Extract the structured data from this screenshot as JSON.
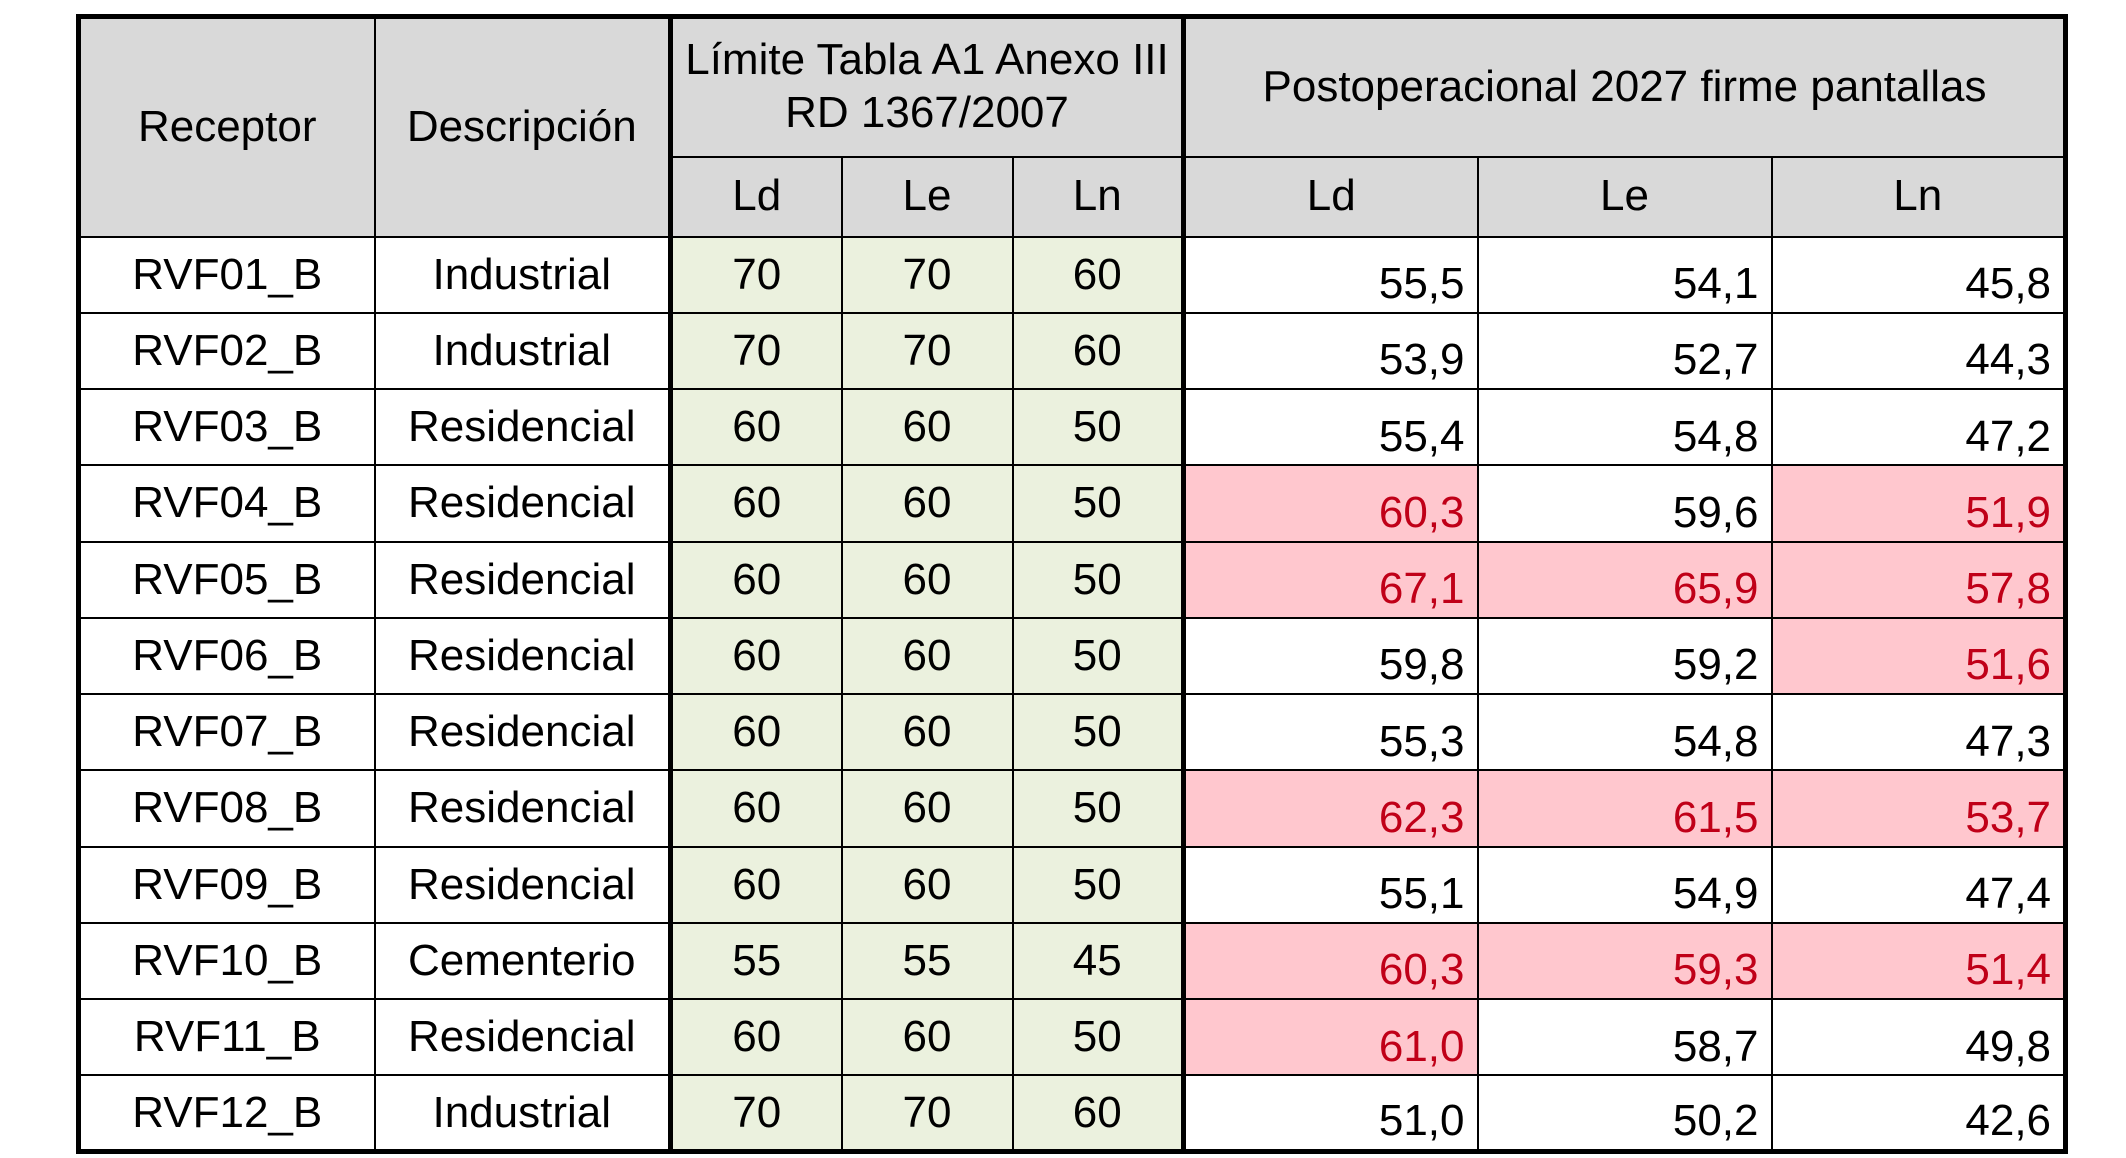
{
  "table": {
    "headers": {
      "receptor": "Receptor",
      "descripcion": "Descripción",
      "limite_group": "Límite Tabla A1 Anexo III RD 1367/2007",
      "post_group": "Postoperacional 2027 firme pantallas",
      "ld": "Ld",
      "le": "Le",
      "ln": "Ln"
    },
    "rows": [
      {
        "receptor": "RVF01_B",
        "descripcion": "Industrial",
        "lim_ld": "70",
        "lim_le": "70",
        "lim_ln": "60",
        "ld": "55,5",
        "le": "54,1",
        "ln": "45,8",
        "ld_exceed": false,
        "le_exceed": false,
        "ln_exceed": false
      },
      {
        "receptor": "RVF02_B",
        "descripcion": "Industrial",
        "lim_ld": "70",
        "lim_le": "70",
        "lim_ln": "60",
        "ld": "53,9",
        "le": "52,7",
        "ln": "44,3",
        "ld_exceed": false,
        "le_exceed": false,
        "ln_exceed": false
      },
      {
        "receptor": "RVF03_B",
        "descripcion": "Residencial",
        "lim_ld": "60",
        "lim_le": "60",
        "lim_ln": "50",
        "ld": "55,4",
        "le": "54,8",
        "ln": "47,2",
        "ld_exceed": false,
        "le_exceed": false,
        "ln_exceed": false
      },
      {
        "receptor": "RVF04_B",
        "descripcion": "Residencial",
        "lim_ld": "60",
        "lim_le": "60",
        "lim_ln": "50",
        "ld": "60,3",
        "le": "59,6",
        "ln": "51,9",
        "ld_exceed": true,
        "le_exceed": false,
        "ln_exceed": true
      },
      {
        "receptor": "RVF05_B",
        "descripcion": "Residencial",
        "lim_ld": "60",
        "lim_le": "60",
        "lim_ln": "50",
        "ld": "67,1",
        "le": "65,9",
        "ln": "57,8",
        "ld_exceed": true,
        "le_exceed": true,
        "ln_exceed": true
      },
      {
        "receptor": "RVF06_B",
        "descripcion": "Residencial",
        "lim_ld": "60",
        "lim_le": "60",
        "lim_ln": "50",
        "ld": "59,8",
        "le": "59,2",
        "ln": "51,6",
        "ld_exceed": false,
        "le_exceed": false,
        "ln_exceed": true
      },
      {
        "receptor": "RVF07_B",
        "descripcion": "Residencial",
        "lim_ld": "60",
        "lim_le": "60",
        "lim_ln": "50",
        "ld": "55,3",
        "le": "54,8",
        "ln": "47,3",
        "ld_exceed": false,
        "le_exceed": false,
        "ln_exceed": false
      },
      {
        "receptor": "RVF08_B",
        "descripcion": "Residencial",
        "lim_ld": "60",
        "lim_le": "60",
        "lim_ln": "50",
        "ld": "62,3",
        "le": "61,5",
        "ln": "53,7",
        "ld_exceed": true,
        "le_exceed": true,
        "ln_exceed": true
      },
      {
        "receptor": "RVF09_B",
        "descripcion": "Residencial",
        "lim_ld": "60",
        "lim_le": "60",
        "lim_ln": "50",
        "ld": "55,1",
        "le": "54,9",
        "ln": "47,4",
        "ld_exceed": false,
        "le_exceed": false,
        "ln_exceed": false
      },
      {
        "receptor": "RVF10_B",
        "descripcion": "Cementerio",
        "lim_ld": "55",
        "lim_le": "55",
        "lim_ln": "45",
        "ld": "60,3",
        "le": "59,3",
        "ln": "51,4",
        "ld_exceed": true,
        "le_exceed": true,
        "ln_exceed": true
      },
      {
        "receptor": "RVF11_B",
        "descripcion": "Residencial",
        "lim_ld": "60",
        "lim_le": "60",
        "lim_ln": "50",
        "ld": "61,0",
        "le": "58,7",
        "ln": "49,8",
        "ld_exceed": true,
        "le_exceed": false,
        "ln_exceed": false
      },
      {
        "receptor": "RVF12_B",
        "descripcion": "Industrial",
        "lim_ld": "70",
        "lim_le": "70",
        "lim_ln": "60",
        "ld": "51,0",
        "le": "50,2",
        "ln": "42,6",
        "ld_exceed": false,
        "le_exceed": false,
        "ln_exceed": false
      }
    ],
    "colors": {
      "header_bg": "#d9d9d9",
      "limit_bg": "#ebf1de",
      "exceed_bg": "#ffc7ce",
      "exceed_text": "#c00018"
    }
  }
}
